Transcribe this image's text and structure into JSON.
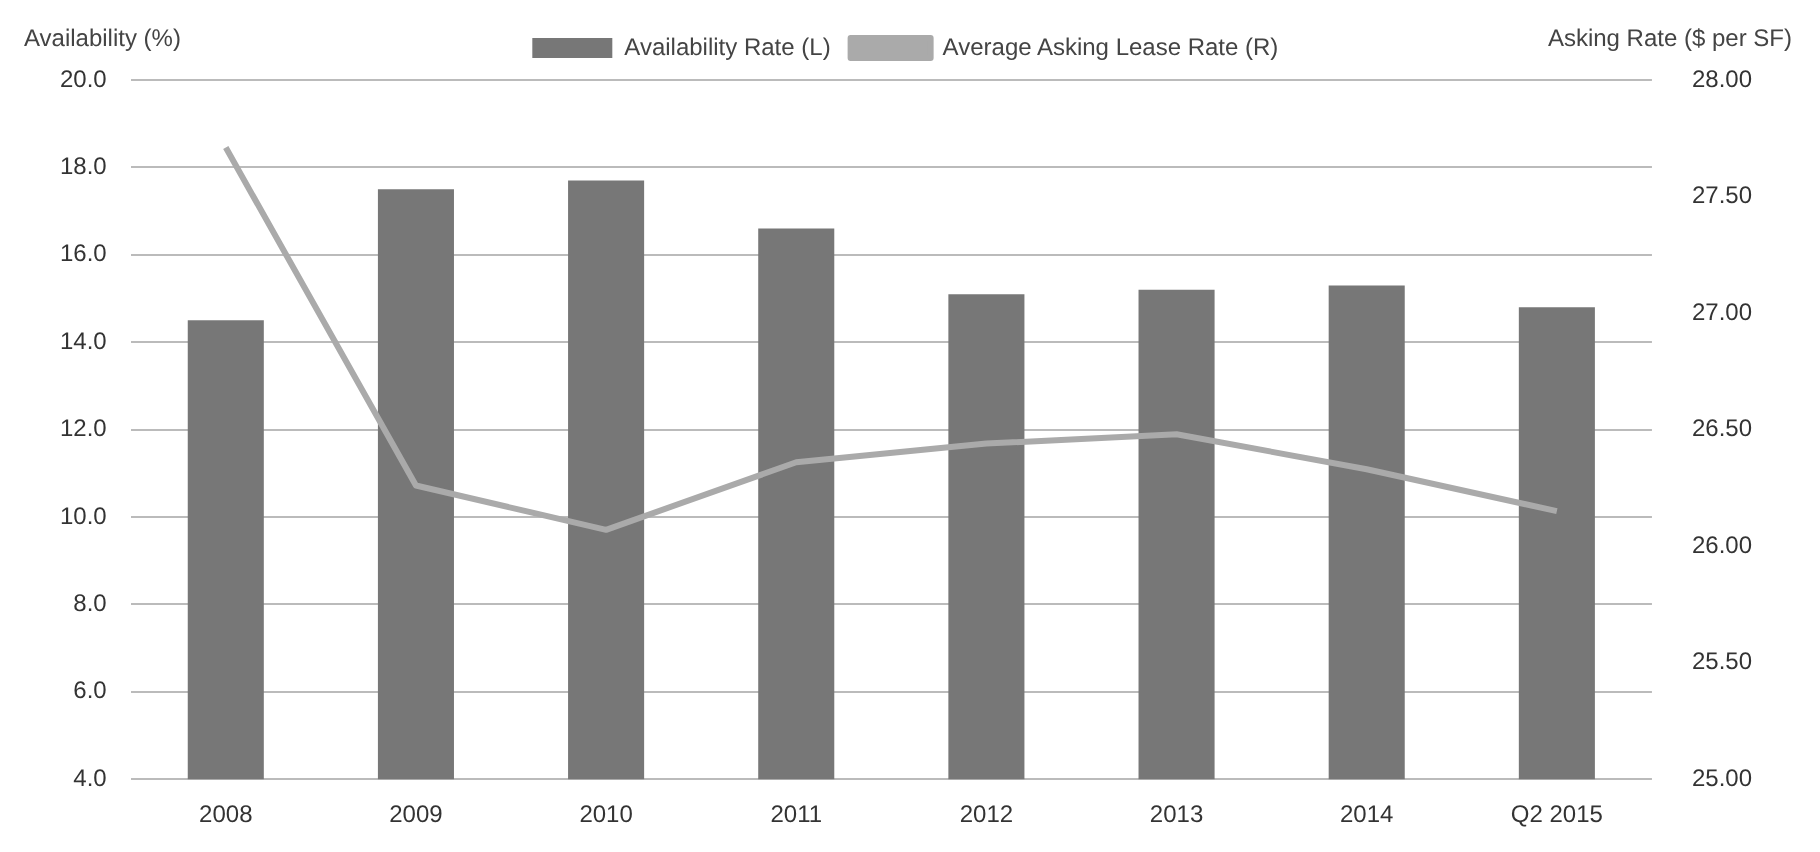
{
  "chart_data": {
    "type": "bar",
    "categories": [
      "2008",
      "2009",
      "2010",
      "2011",
      "2012",
      "2013",
      "2014",
      "Q2 2015"
    ],
    "ylabel": "Availability (%)",
    "y2label": "Asking Rate ($ per SF)",
    "series": [
      {
        "name": "Availability Rate (L)",
        "color": "#777777",
        "values": [
          14.5,
          17.5,
          17.7,
          16.6,
          15.1,
          15.2,
          15.3,
          14.8
        ]
      },
      {
        "name": "Average Asking Lease Rate (R)",
        "type": "line",
        "axis": "y2",
        "color": "#aaaaaa",
        "values": [
          27.71,
          26.26,
          26.07,
          26.36,
          26.44,
          26.48,
          26.33,
          26.15
        ]
      }
    ],
    "ylim": [
      4,
      20
    ],
    "yticks": [
      {
        "value": 4,
        "label": "4.0"
      },
      {
        "value": 6,
        "label": "6.0"
      },
      {
        "value": 8,
        "label": "8.0"
      },
      {
        "value": 10,
        "label": "10.0"
      },
      {
        "value": 12,
        "label": "12.0"
      },
      {
        "value": 14,
        "label": "14.0"
      },
      {
        "value": 16,
        "label": "16.0"
      },
      {
        "value": 18,
        "label": "18.0"
      },
      {
        "value": 20,
        "label": "20.0"
      }
    ],
    "y2lim": [
      25,
      28
    ],
    "y2ticks": [
      {
        "value": 25,
        "label": "25.00"
      },
      {
        "value": 25.5,
        "label": "25.50"
      },
      {
        "value": 26,
        "label": "26.00"
      },
      {
        "value": 26.5,
        "label": "26.50"
      },
      {
        "value": 27,
        "label": "27.00"
      },
      {
        "value": 27.5,
        "label": "27.50"
      },
      {
        "value": 28,
        "label": "28.00"
      }
    ],
    "grid": "y",
    "legend": "top",
    "marker": "none"
  }
}
